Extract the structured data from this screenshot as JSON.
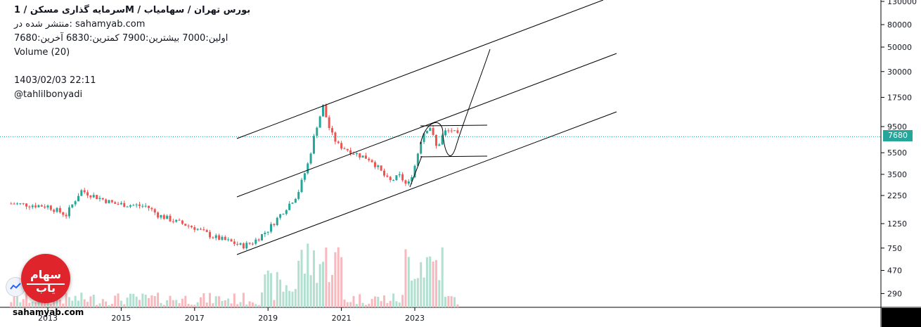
{
  "header": {
    "title": "سرمایه گذاری  مسکن  /  1M  /  بورس تهران / سهامیاب",
    "published": "منتشر شده در: sahamyab.com",
    "ohlc": "اولین:7000  بیشترین:7900  کمترین:6830  آخرین:7680",
    "volume_label": "Volume (20)",
    "date": "1403/02/03 22:11",
    "author": "@tahlilbonyadi"
  },
  "logo": {
    "text": "سهام یاب"
  },
  "watermark": "sahamyab.com",
  "price_tag": "7680",
  "colors": {
    "up": "#26a69a",
    "down": "#ef5350",
    "vol_up": "#b2dfcf",
    "vol_down": "#f7b9bd",
    "line": "#000000",
    "tag": "#26a69a"
  },
  "chart_data": {
    "type": "candlestick",
    "scale": "log",
    "y_ticks": [
      "130000",
      "80000",
      "50000",
      "30000",
      "17500",
      "9500",
      "5500",
      "3500",
      "2250",
      "1250",
      "750",
      "470",
      "290"
    ],
    "x_ticks": [
      "2013",
      "2015",
      "2017",
      "2019",
      "2021",
      "2023"
    ],
    "last_price": 7680,
    "price_series": [
      {
        "date": "2012.0",
        "close": 1900
      },
      {
        "date": "2012.5",
        "close": 1850
      },
      {
        "date": "2013.0",
        "close": 1800
      },
      {
        "date": "2013.5",
        "close": 1500
      },
      {
        "date": "2013.9",
        "close": 2500
      },
      {
        "date": "2014.3",
        "close": 2200
      },
      {
        "date": "2014.8",
        "close": 1900
      },
      {
        "date": "2015.2",
        "close": 1850
      },
      {
        "date": "2015.7",
        "close": 1800
      },
      {
        "date": "2016.0",
        "close": 1500
      },
      {
        "date": "2016.5",
        "close": 1300
      },
      {
        "date": "2017.0",
        "close": 1150
      },
      {
        "date": "2017.5",
        "close": 950
      },
      {
        "date": "2018.0",
        "close": 850
      },
      {
        "date": "2018.3",
        "close": 780
      },
      {
        "date": "2018.6",
        "close": 850
      },
      {
        "date": "2019.0",
        "close": 1100
      },
      {
        "date": "2019.4",
        "close": 1600
      },
      {
        "date": "2019.8",
        "close": 2300
      },
      {
        "date": "2020.1",
        "close": 4500
      },
      {
        "date": "2020.3",
        "close": 9000
      },
      {
        "date": "2020.5",
        "close": 14500
      },
      {
        "date": "2020.7",
        "close": 8500
      },
      {
        "date": "2020.9",
        "close": 6500
      },
      {
        "date": "2021.2",
        "close": 5800
      },
      {
        "date": "2021.5",
        "close": 5200
      },
      {
        "date": "2021.8",
        "close": 4800
      },
      {
        "date": "2022.0",
        "close": 4000
      },
      {
        "date": "2022.3",
        "close": 3000
      },
      {
        "date": "2022.6",
        "close": 3400
      },
      {
        "date": "2022.8",
        "close": 2700
      },
      {
        "date": "2023.0",
        "close": 4200
      },
      {
        "date": "2023.2",
        "close": 8000
      },
      {
        "date": "2023.4",
        "close": 9800
      },
      {
        "date": "2023.6",
        "close": 6000
      },
      {
        "date": "2023.8",
        "close": 8500
      },
      {
        "date": "2024.0",
        "close": 8800
      },
      {
        "date": "2024.2",
        "close": 7680
      }
    ]
  }
}
